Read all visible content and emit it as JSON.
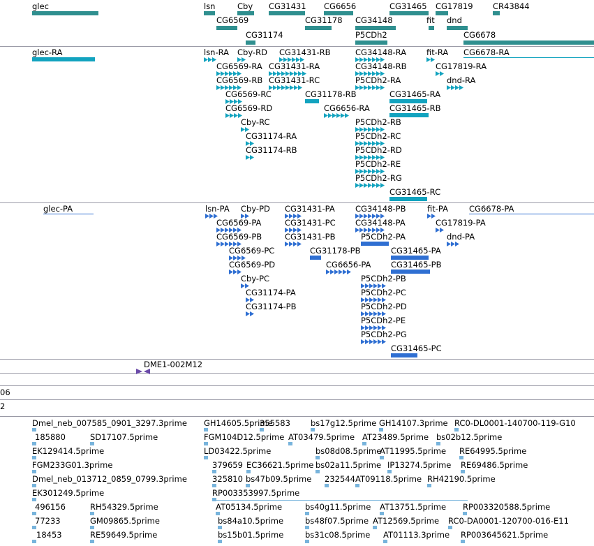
{
  "colors": {
    "gene": "#2f8f8f",
    "transcript": "#12a3bf",
    "protein": "#2f6fd2",
    "primer": "#6a4aa8",
    "est": "#78b4dc",
    "separator": "#9a9aa6"
  },
  "genes": [
    "glec",
    "lsn",
    "Cby",
    "CG31431",
    "CG6656",
    "CG31465",
    "CG17819",
    "CR43844",
    "CG6569",
    "CG31178",
    "CG34148",
    "fit",
    "dnd",
    "CG31174",
    "P5CDh2",
    "CG6678"
  ],
  "transcripts": [
    "glec-RA",
    "lsn-RA",
    "Cby-RD",
    "CG31431-RB",
    "CG34148-RA",
    "fit-RA",
    "CG6678-RA",
    "CG6569-RA",
    "CG31431-RA",
    "CG34148-RB",
    "CG17819-RA",
    "CG6569-RB",
    "CG31431-RC",
    "P5CDh2-RA",
    "dnd-RA",
    "CG6569-RC",
    "CG31178-RB",
    "CG31465-RA",
    "CG6569-RD",
    "CG6656-RA",
    "CG31465-RB",
    "Cby-RC",
    "P5CDh2-RB",
    "CG31174-RA",
    "P5CDh2-RC",
    "CG31174-RB",
    "P5CDh2-RD",
    "P5CDh2-RE",
    "P5CDh2-RG",
    "CG31465-RC"
  ],
  "proteins": [
    "glec-PA",
    "lsn-PA",
    "Cby-PD",
    "CG31431-PA",
    "CG34148-PB",
    "fit-PA",
    "CG6678-PA",
    "CG6569-PA",
    "CG31431-PC",
    "CG34148-PA",
    "CG17819-PA",
    "CG6569-PB",
    "CG31431-PB",
    "P5CDh2-PA",
    "dnd-PA",
    "CG6569-PC",
    "CG31178-PB",
    "CG31465-PA",
    "CG6569-PD",
    "CG6656-PA",
    "CG31465-PB",
    "Cby-PC",
    "P5CDh2-PB",
    "CG31174-PA",
    "P5CDh2-PC",
    "CG31174-PB",
    "P5CDh2-PD",
    "P5CDh2-PE",
    "P5CDh2-PG",
    "CG31465-PC"
  ],
  "primer": {
    "label": "DME1-002M12"
  },
  "cut_labels": [
    "06",
    "2"
  ],
  "ests": [
    "Dmel_neb_007585_0901_3297.3prime",
    "GH14605.5prime",
    "355583",
    "bs17g12.5prime",
    "GH14107.3prime",
    "RC0-DL0001-140700-119-G10",
    "185880",
    "SD17107.5prime",
    "FGM104D12.5prime",
    "AT03479.5prime",
    "AT23489.5prime",
    "bs02b12.5prime",
    "EK129414.5prime",
    "LD03422.5prime",
    "bs08d08.5prime",
    "AT11995.5prime",
    "RE64995.5prime",
    "FGM233G01.3prime",
    "379659",
    "EC36621.5prime",
    "bs02a11.5prime",
    "IP13274.5prime",
    "RE69486.5prime",
    "Dmel_neb_013712_0859_0799.3prime",
    "325810",
    "bs47b09.5prime",
    "232544",
    "AT09118.5prime",
    "RH42190.5prime",
    "EK301249.5prime",
    "RP003353997.5prime",
    "496156",
    "RH54329.5prime",
    "AT05134.5prime",
    "bs40g11.5prime",
    "AT13751.5prime",
    "RP003320588.5prime",
    "77233",
    "GM09865.5prime",
    "bs84a10.5prime",
    "bs48f07.5prime",
    "AT12569.5prime",
    "RC0-DA0001-120700-016-E11",
    "18453",
    "RE59649.5prime",
    "bs15b01.5prime",
    "bs31c08.5prime",
    "AT01113.3prime",
    "RP003645621.5prime"
  ]
}
